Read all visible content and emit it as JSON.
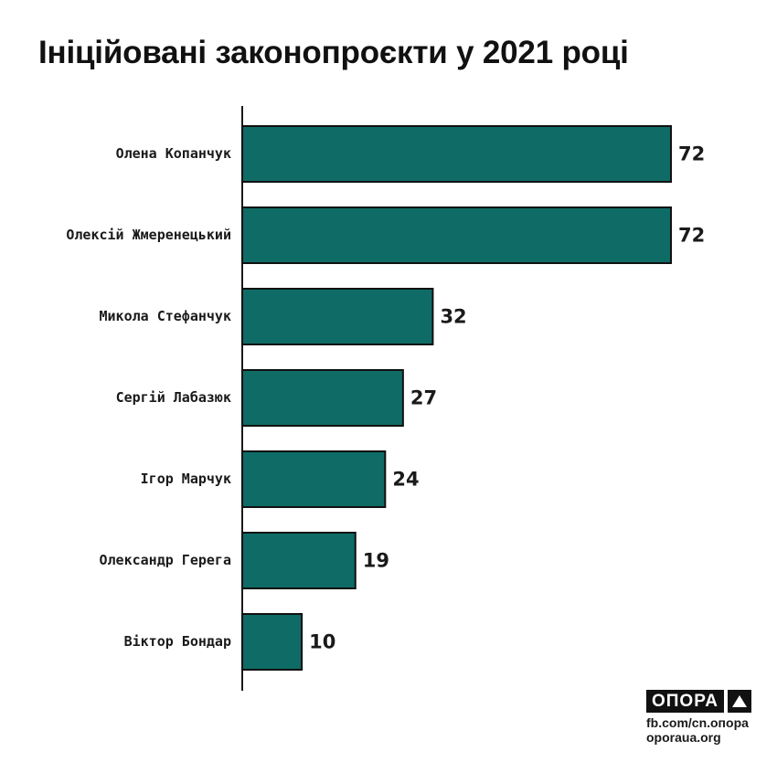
{
  "chart_data": {
    "type": "bar",
    "orientation": "horizontal",
    "title": "Ініційовані законопроєкти у 2021 році",
    "categories": [
      "Олена Копанчук",
      "Олексій Жмеренецький",
      "Микола Стефанчук",
      "Сергій Лабазюк",
      "Ігор Марчук",
      "Олександр Герега",
      "Віктор Бондар"
    ],
    "values": [
      72,
      72,
      32,
      27,
      24,
      19,
      10
    ],
    "xlim": [
      0,
      72
    ],
    "grid": false,
    "bar_color": "#0f6b65"
  },
  "footer": {
    "logo": "ОПОРА",
    "facebook": "fb.com/cn.опора",
    "website": "oporaua.org"
  }
}
